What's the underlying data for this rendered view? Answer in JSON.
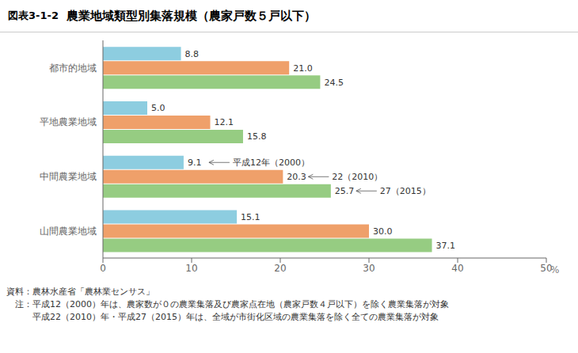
{
  "chart_data": {
    "type": "bar",
    "orientation": "horizontal",
    "title": "農業地域類型別集落規模（農家戸数５戸以下）",
    "subtitle": "図表3-1-2",
    "xlabel": "%",
    "categories": [
      "都市的地域",
      "平地農業地域",
      "中間農業地域",
      "山間農業地域"
    ],
    "series": [
      {
        "name": "平成12年（2000）",
        "color": "#8DCDE0",
        "values": [
          8.8,
          5.0,
          9.1,
          15.1
        ],
        "value_labels": [
          "8.8",
          "5.0",
          "9.1",
          "15.1"
        ]
      },
      {
        "name": "22（2010）",
        "color": "#EFA06A",
        "values": [
          21.0,
          12.1,
          20.3,
          30.0
        ],
        "value_labels": [
          "21.0",
          "12.1",
          "20.3",
          "30.0"
        ]
      },
      {
        "name": "27（2015）",
        "color": "#96CC82",
        "values": [
          24.5,
          15.8,
          25.7,
          37.1
        ],
        "value_labels": [
          "24.5",
          "15.8",
          "25.7",
          "37.1"
        ]
      }
    ],
    "annotations": [
      {
        "text": "平成12年（2000）",
        "category": "中間農業地域",
        "series": "平成12年（2000）"
      },
      {
        "text": "22（2010）",
        "category": "中間農業地域",
        "series": "22（2010）"
      },
      {
        "text": "27（2015）",
        "category": "中間農業地域",
        "series": "27（2015）"
      }
    ],
    "footnotes": [
      "資料：農林水産省「農林業センサス」",
      "　注：平成12（2000）年は、農家数が０の農業集落及び農家点在地（農家戸数４戸以下）を除く農業集落が対象",
      "　　　平成22（2010）年・平成27（2015）年は、全域が市街化区域の農業集落を除く全ての農業集落が対象"
    ],
    "xlim": [
      0,
      50
    ],
    "xticks": [
      0,
      10,
      20,
      30,
      40,
      50
    ],
    "data_labels": true,
    "grid": false
  }
}
